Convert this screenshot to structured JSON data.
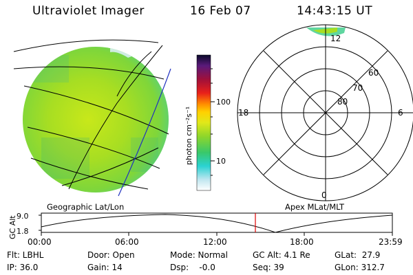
{
  "header": {
    "instrument": "Ultraviolet Imager",
    "date": "16 Feb 07",
    "time": "14:43:15 UT"
  },
  "colorbar": {
    "unit_label": "photon cm⁻²s⁻¹",
    "ticks": [
      "100",
      "10"
    ]
  },
  "polar_plot": {
    "mlt_labels": [
      "12",
      "18",
      "6",
      "0"
    ],
    "lat_labels": [
      "60",
      "70",
      "80"
    ]
  },
  "map_labels": {
    "left": "Geographic Lat/Lon",
    "right": "Apex MLat/MLT"
  },
  "altitude_plot": {
    "axis_label": "GC Alt",
    "y_ticks": [
      "9.0",
      "1.8"
    ],
    "x_ticks": [
      "00:00",
      "06:00",
      "12:00",
      "18:00",
      "23:59"
    ]
  },
  "info_rows": [
    [
      "Flt: LBHL",
      "Door: Open",
      "Mode: Normal",
      "GC Alt: 4.1 Re",
      "GLat:  27.9"
    ],
    [
      "IP: 36.0",
      "Gain: 14",
      "Dsp:    -0.0",
      "Seq: 39",
      "GLon: 312.7"
    ]
  ]
}
